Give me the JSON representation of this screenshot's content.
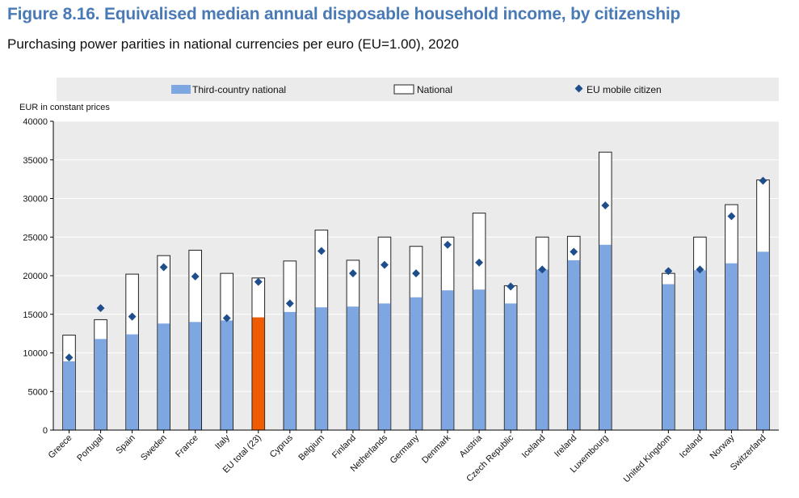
{
  "title": "Figure 8.16. Equivalised median annual disposable household income, by citizenship",
  "subtitle": "Purchasing power parities in national currencies per euro (EU=1.00), 2020",
  "colors": {
    "third_country": "#7ea6e0",
    "third_country_border": "#4b74a8",
    "eu_total": "#f05a00",
    "national_fill": "#ffffff",
    "national_border": "#222222",
    "eu_mobile": "#1f4e8c",
    "plot_bg": "#ebebeb",
    "grid": "#ffffff"
  },
  "chart_data": {
    "type": "bar",
    "ylabel": "EUR in constant prices",
    "ylim": [
      0,
      40000
    ],
    "yticks": [
      0,
      5000,
      10000,
      15000,
      20000,
      25000,
      30000,
      35000,
      40000
    ],
    "legend_position": "top",
    "grid": true,
    "categories": [
      "Greece",
      "Portugal",
      "Spain",
      "Sweden",
      "France",
      "Italy",
      "EU total (23)",
      "Cyprus",
      "Belgium",
      "Finland",
      "Netherlands",
      "Germany",
      "Denmark",
      "Austria",
      "Czech Republic",
      "Iceland",
      "Ireland",
      "Luxembourg",
      "United Kingdom",
      "Iceland",
      "Norway",
      "Switzerland"
    ],
    "highlight_index": 6,
    "gap_before_index": 18,
    "series": [
      {
        "name": "Third-country national",
        "kind": "bar",
        "values": [
          8900,
          11800,
          12400,
          13800,
          14000,
          14200,
          14600,
          15300,
          15900,
          16000,
          16400,
          17200,
          18100,
          18200,
          16400,
          20800,
          22000,
          24000,
          18900,
          20700,
          21600,
          23100
        ]
      },
      {
        "name": "National",
        "kind": "outline-bar",
        "values": [
          12300,
          14300,
          20200,
          22600,
          23300,
          20300,
          19700,
          21900,
          25900,
          22000,
          25000,
          23800,
          25000,
          28100,
          18700,
          25000,
          25100,
          36000,
          20300,
          25000,
          29200,
          32400
        ]
      },
      {
        "name": "EU mobile citizen",
        "kind": "marker",
        "values": [
          9400,
          15800,
          14700,
          21100,
          19900,
          14500,
          19200,
          16400,
          23200,
          20300,
          21400,
          20300,
          24000,
          21700,
          18600,
          20800,
          23100,
          29100,
          20600,
          20800,
          27700,
          32300
        ]
      }
    ]
  }
}
